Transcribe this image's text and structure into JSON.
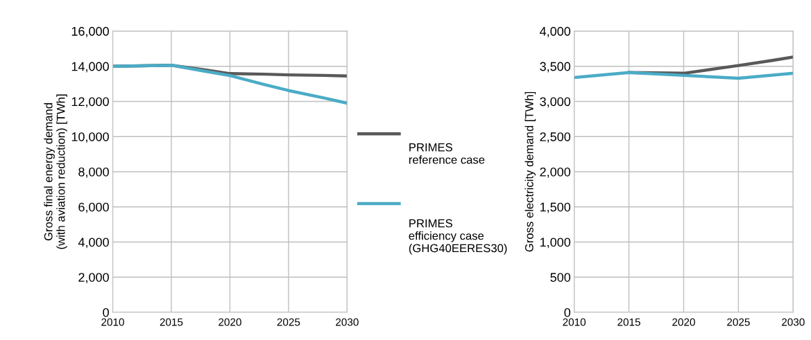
{
  "chart_data": [
    {
      "type": "line",
      "ylabel": "Gross final energy demand\n(with aviation reduction) [TWh]",
      "xlim": [
        2010,
        2030
      ],
      "xticks": [
        2010,
        2015,
        2020,
        2025,
        2030
      ],
      "ylim": [
        0,
        16000
      ],
      "yticks": [
        0,
        {
          "value": 2000,
          "label": "2,000"
        },
        {
          "value": 4000,
          "label": "4,000"
        },
        {
          "value": 6000,
          "label": "6,000"
        },
        {
          "value": 8000,
          "label": "8,000"
        },
        {
          "value": 10000,
          "label": "10,000"
        },
        {
          "value": 12000,
          "label": "12,000"
        },
        {
          "value": 14000,
          "label": "14,000"
        },
        {
          "value": 16000,
          "label": "16,000"
        }
      ],
      "grid": true,
      "legend": "right",
      "line_style": "solid",
      "marker": "none",
      "series": [
        {
          "name": "PRIMES\nreference case",
          "color": "#595959",
          "x": [
            2010,
            2015,
            2018,
            2020,
            2023,
            2025,
            2028,
            2030
          ],
          "values": [
            14000,
            14060,
            13780,
            13580,
            13550,
            13510,
            13480,
            13450
          ]
        },
        {
          "name": "PRIMES\nefficiency case\n(GHG40EERES30)",
          "color": "#4bacc6",
          "x": [
            2010,
            2015,
            2018,
            2020,
            2023,
            2025,
            2028,
            2030
          ],
          "values": [
            14000,
            14060,
            13700,
            13470,
            12950,
            12620,
            12200,
            11900
          ]
        }
      ]
    },
    {
      "type": "line",
      "ylabel": "Gross electricity demand [TWh]",
      "xlim": [
        2010,
        2030
      ],
      "xticks": [
        2010,
        2015,
        2020,
        2025,
        2030
      ],
      "ylim": [
        0,
        4000
      ],
      "yticks": [
        0,
        500,
        {
          "value": 1000,
          "label": "1,000"
        },
        {
          "value": 1500,
          "label": "1,500"
        },
        {
          "value": 2000,
          "label": "2,000"
        },
        {
          "value": 2500,
          "label": "2,500"
        },
        {
          "value": 3000,
          "label": "3,000"
        },
        {
          "value": 3500,
          "label": "3,500"
        },
        {
          "value": 4000,
          "label": "4,000"
        }
      ],
      "grid": true,
      "line_style": "solid",
      "marker": "none",
      "series": [
        {
          "color": "#595959",
          "x": [
            2015,
            2020,
            2025,
            2028,
            2030
          ],
          "values": [
            3410,
            3400,
            3510,
            3580,
            3630
          ]
        },
        {
          "color": "#4bacc6",
          "x": [
            2010,
            2015,
            2020,
            2025,
            2030
          ],
          "values": [
            3340,
            3410,
            3370,
            3330,
            3400
          ]
        }
      ]
    }
  ]
}
